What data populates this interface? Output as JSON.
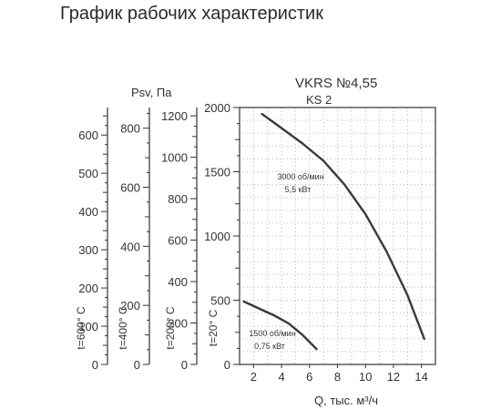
{
  "page_title": "График рабочих характеристик",
  "chart_data": {
    "type": "line",
    "title": "VKRS №4,55",
    "subtitle": "KS 2",
    "xlabel": "Q, тыс. м³/ч",
    "x_ticks": [
      2,
      4,
      6,
      8,
      10,
      12,
      14
    ],
    "xlim": [
      1,
      15
    ],
    "ylim": [
      0,
      2000
    ],
    "y_ticks": [
      0,
      500,
      1000,
      1500,
      2000
    ],
    "grid": true,
    "left_axes_title": "Psv, Па",
    "temperature_axes": [
      {
        "label": "t=600° C",
        "max": 672,
        "ticks": [
          0,
          100,
          200,
          300,
          400,
          500,
          600
        ]
      },
      {
        "label": "t=400° C",
        "max": 870,
        "ticks": [
          0,
          200,
          400,
          600,
          800
        ]
      },
      {
        "label": "t=200° C",
        "max": 1240,
        "ticks": [
          0,
          200,
          400,
          600,
          800,
          1000,
          1200
        ]
      },
      {
        "label": "t=20° C",
        "max": 2000,
        "ticks": [
          0,
          500,
          1000,
          1500,
          2000
        ]
      }
    ],
    "series": [
      {
        "label_lines": [
          "3000 об/мин",
          "5,5 кВт"
        ],
        "x": [
          2.6,
          4.0,
          5.5,
          7.0,
          8.5,
          10.0,
          11.5,
          13.0,
          14.2
        ],
        "y": [
          1950,
          1840,
          1720,
          1585,
          1400,
          1170,
          880,
          540,
          200
        ]
      },
      {
        "label_lines": [
          "1500 об/мин",
          "0,75 кВт"
        ],
        "x": [
          1.3,
          2.5,
          3.5,
          4.5,
          5.5,
          6.5
        ],
        "y": [
          490,
          430,
          380,
          320,
          230,
          120
        ]
      }
    ]
  }
}
